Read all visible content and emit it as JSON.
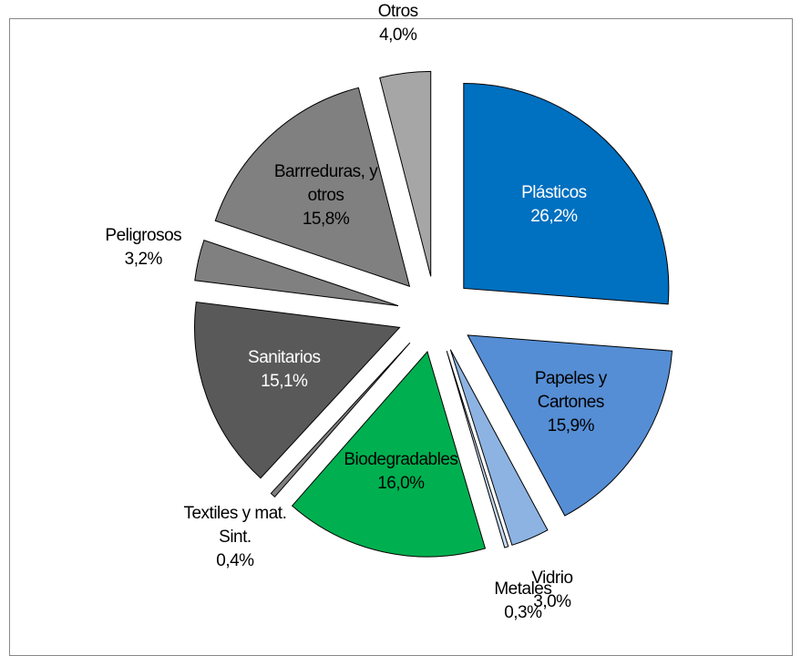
{
  "chart_data": {
    "type": "pie",
    "categories": [
      "Plásticos",
      "Papeles y Cartones",
      "Vidrio",
      "Metales",
      "Biodegradables",
      "Textiles y mat. Sint.",
      "Sanitarios",
      "Peligrosos",
      "Barrreduras, y otros",
      "Otros"
    ],
    "values": [
      26.2,
      15.9,
      3.0,
      0.3,
      16.0,
      0.4,
      15.1,
      3.2,
      15.8,
      4.0
    ],
    "value_labels": [
      "26,2%",
      "15,9%",
      "3,0%",
      "0,3%",
      "16,0%",
      "0,4%",
      "15,1%",
      "3,2%",
      "15,8%",
      "4,0%"
    ],
    "colors": [
      "#0070c0",
      "#558ed5",
      "#8db3e2",
      "#c6d9f1",
      "#00b050",
      "#7f7f7f",
      "#595959",
      "#808080",
      "#808080",
      "#a6a6a6"
    ]
  }
}
